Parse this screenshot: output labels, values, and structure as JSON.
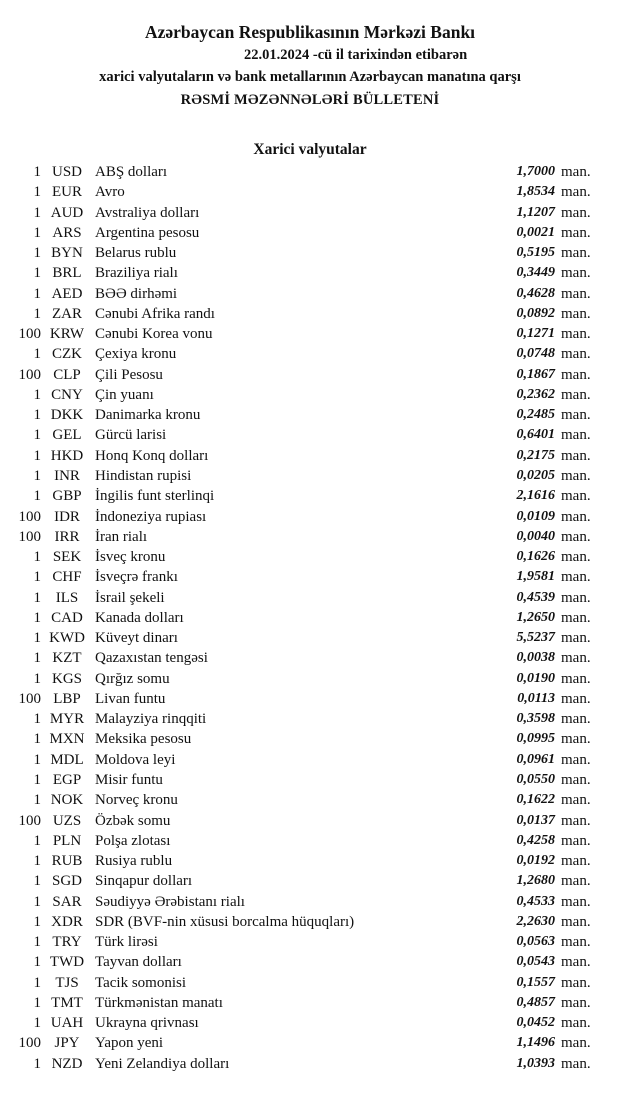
{
  "header": {
    "title": "Azərbaycan Respublikasının Mərkəzi Bankı",
    "date_line": "22.01.2024  -cü il tarixindən etibarən",
    "subtitle": "xarici valyutaların və bank metallarının Azərbaycan manatına qarşı",
    "bulletin": "RƏSMİ MƏZƏNNƏLƏRİ BÜLLETENİ"
  },
  "section_title": "Xarici valyutalar",
  "unit_label": "man.",
  "rates": [
    {
      "amount": "1",
      "code": "USD",
      "name": "ABŞ dolları",
      "value": "1,7000"
    },
    {
      "amount": "1",
      "code": "EUR",
      "name": "Avro",
      "value": "1,8534"
    },
    {
      "amount": "1",
      "code": "AUD",
      "name": "Avstraliya dolları",
      "value": "1,1207"
    },
    {
      "amount": "1",
      "code": "ARS",
      "name": "Argentina pesosu",
      "value": "0,0021"
    },
    {
      "amount": "1",
      "code": "BYN",
      "name": "Belarus rublu",
      "value": "0,5195"
    },
    {
      "amount": "1",
      "code": "BRL",
      "name": "Braziliya rialı",
      "value": "0,3449"
    },
    {
      "amount": "1",
      "code": "AED",
      "name": "BƏƏ dirhəmi",
      "value": "0,4628"
    },
    {
      "amount": "1",
      "code": "ZAR",
      "name": "Cənubi Afrika randı",
      "value": "0,0892"
    },
    {
      "amount": "100",
      "code": "KRW",
      "name": "Cənubi Korea vonu",
      "value": "0,1271"
    },
    {
      "amount": "1",
      "code": "CZK",
      "name": "Çexiya kronu",
      "value": "0,0748"
    },
    {
      "amount": "100",
      "code": "CLP",
      "name": "Çili Pesosu",
      "value": "0,1867"
    },
    {
      "amount": "1",
      "code": "CNY",
      "name": "Çin yuanı",
      "value": "0,2362"
    },
    {
      "amount": "1",
      "code": "DKK",
      "name": "Danimarka kronu",
      "value": "0,2485"
    },
    {
      "amount": "1",
      "code": "GEL",
      "name": "Gürcü larisi",
      "value": "0,6401"
    },
    {
      "amount": "1",
      "code": "HKD",
      "name": "Honq Konq dolları",
      "value": "0,2175"
    },
    {
      "amount": "1",
      "code": "INR",
      "name": "Hindistan rupisi",
      "value": "0,0205"
    },
    {
      "amount": "1",
      "code": "GBP",
      "name": "İngilis funt sterlinqi",
      "value": "2,1616"
    },
    {
      "amount": "100",
      "code": "IDR",
      "name": "İndoneziya rupiası",
      "value": "0,0109"
    },
    {
      "amount": "100",
      "code": "IRR",
      "name": "İran rialı",
      "value": "0,0040"
    },
    {
      "amount": "1",
      "code": "SEK",
      "name": "İsveç kronu",
      "value": "0,1626"
    },
    {
      "amount": "1",
      "code": "CHF",
      "name": "İsveçrə frankı",
      "value": "1,9581"
    },
    {
      "amount": "1",
      "code": "ILS",
      "name": "İsrail şekeli",
      "value": "0,4539"
    },
    {
      "amount": "1",
      "code": "CAD",
      "name": "Kanada dolları",
      "value": "1,2650"
    },
    {
      "amount": "1",
      "code": "KWD",
      "name": "Küveyt dinarı",
      "value": "5,5237"
    },
    {
      "amount": "1",
      "code": "KZT",
      "name": "Qazaxıstan tengəsi",
      "value": "0,0038"
    },
    {
      "amount": "1",
      "code": "KGS",
      "name": "Qırğız somu",
      "value": "0,0190"
    },
    {
      "amount": "100",
      "code": "LBP",
      "name": "Livan funtu",
      "value": "0,0113"
    },
    {
      "amount": "1",
      "code": "MYR",
      "name": "Malayziya rinqqiti",
      "value": "0,3598"
    },
    {
      "amount": "1",
      "code": "MXN",
      "name": "Meksika pesosu",
      "value": "0,0995"
    },
    {
      "amount": "1",
      "code": "MDL",
      "name": "Moldova leyi",
      "value": "0,0961"
    },
    {
      "amount": "1",
      "code": "EGP",
      "name": "Misir funtu",
      "value": "0,0550"
    },
    {
      "amount": "1",
      "code": "NOK",
      "name": "Norveç kronu",
      "value": "0,1622"
    },
    {
      "amount": "100",
      "code": "UZS",
      "name": "Özbək somu",
      "value": "0,0137"
    },
    {
      "amount": "1",
      "code": "PLN",
      "name": "Polşa zlotası",
      "value": "0,4258"
    },
    {
      "amount": "1",
      "code": "RUB",
      "name": "Rusiya rublu",
      "value": "0,0192"
    },
    {
      "amount": "1",
      "code": "SGD",
      "name": "Sinqapur dolları",
      "value": "1,2680"
    },
    {
      "amount": "1",
      "code": "SAR",
      "name": "Səudiyyə Ərəbistanı rialı",
      "value": "0,4533"
    },
    {
      "amount": "1",
      "code": "XDR",
      "name": "SDR (BVF-nin xüsusi borcalma hüquqları)",
      "value": "2,2630"
    },
    {
      "amount": "1",
      "code": "TRY",
      "name": "Türk lirəsi",
      "value": "0,0563"
    },
    {
      "amount": "1",
      "code": "TWD",
      "name": "Tayvan dolları",
      "value": "0,0543"
    },
    {
      "amount": "1",
      "code": "TJS",
      "name": "Tacik somonisi",
      "value": "0,1557"
    },
    {
      "amount": "1",
      "code": "TMT",
      "name": "Türkmənistan manatı",
      "value": "0,4857"
    },
    {
      "amount": "1",
      "code": "UAH",
      "name": "Ukrayna qrivnası",
      "value": "0,0452"
    },
    {
      "amount": "100",
      "code": "JPY",
      "name": "Yapon yeni",
      "value": "1,1496"
    },
    {
      "amount": "1",
      "code": "NZD",
      "name": "Yeni Zelandiya dolları",
      "value": "1,0393"
    }
  ]
}
